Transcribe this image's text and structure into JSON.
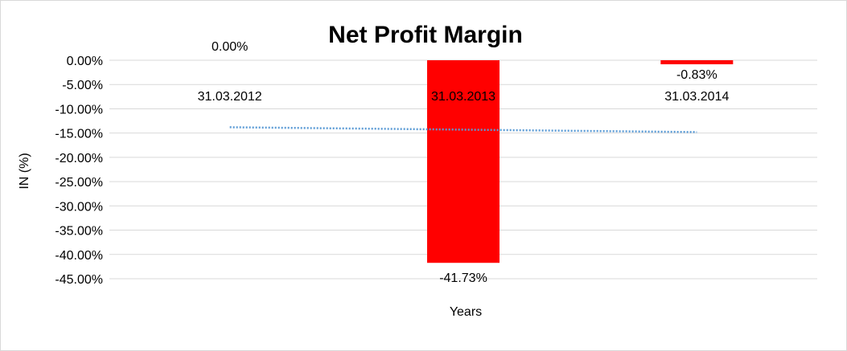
{
  "chart_data": {
    "type": "bar",
    "title": "Net Profit Margin",
    "xlabel": "Years",
    "ylabel": "IN (%)",
    "categories": [
      "31.03.2012",
      "31.03.2013",
      "31.03.2014"
    ],
    "values": [
      0.0,
      -41.73,
      -0.83
    ],
    "data_labels": [
      "0.00%",
      "-41.73%",
      "-0.83%"
    ],
    "ylim": [
      -45,
      0
    ],
    "yticks": [
      "0.00%",
      "-5.00%",
      "-10.00%",
      "-15.00%",
      "-20.00%",
      "-25.00%",
      "-30.00%",
      "-35.00%",
      "-40.00%",
      "-45.00%"
    ],
    "ytick_values": [
      0,
      -5,
      -10,
      -15,
      -20,
      -25,
      -30,
      -35,
      -40,
      -45
    ],
    "trendline": {
      "type": "linear",
      "start": -13.8,
      "end": -14.8,
      "color": "#5b9bd5"
    },
    "bar_color": "#ff0000",
    "grid": true
  }
}
